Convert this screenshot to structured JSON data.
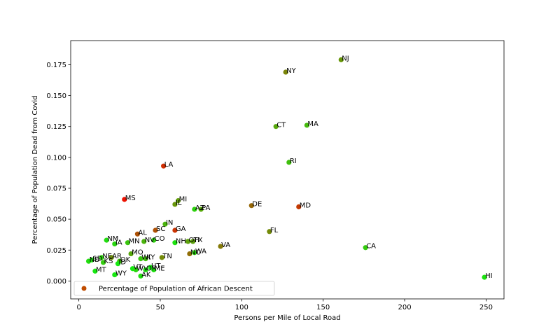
{
  "chart_data": {
    "type": "scatter",
    "xlabel": "Persons per Mile of Local Road",
    "ylabel": "Percentage of Population Dead from Covid",
    "xlim": [
      -5,
      261
    ],
    "ylim": [
      -0.0145,
      0.1945
    ],
    "xticks": [
      0,
      50,
      100,
      150,
      200,
      250
    ],
    "yticks": [
      0.0,
      0.025,
      0.05,
      0.075,
      0.1,
      0.125,
      0.15,
      0.175
    ],
    "ytick_labels": [
      "0.000",
      "0.025",
      "0.050",
      "0.075",
      "0.100",
      "0.125",
      "0.150",
      "0.175"
    ],
    "grid": false,
    "legend": {
      "placement": "lower-left",
      "label": "Percentage of Population of African Descent",
      "marker_color": "#c04c00"
    },
    "color_scale": {
      "low": "#11ee11",
      "high": "#ee1100"
    },
    "points": [
      {
        "label": "NJ",
        "x": 161,
        "y": 0.179,
        "african_pct": 0.15
      },
      {
        "label": "NY",
        "x": 127,
        "y": 0.169,
        "african_pct": 0.18
      },
      {
        "label": "CT",
        "x": 121,
        "y": 0.125,
        "african_pct": 0.12
      },
      {
        "label": "MA",
        "x": 140,
        "y": 0.126,
        "african_pct": 0.09
      },
      {
        "label": "RI",
        "x": 129,
        "y": 0.096,
        "african_pct": 0.08
      },
      {
        "label": "LA",
        "x": 52,
        "y": 0.093,
        "african_pct": 0.33
      },
      {
        "label": "MI",
        "x": 61,
        "y": 0.065,
        "african_pct": 0.14
      },
      {
        "label": "IL",
        "x": 59,
        "y": 0.062,
        "african_pct": 0.15
      },
      {
        "label": "MS",
        "x": 28,
        "y": 0.066,
        "african_pct": 0.38
      },
      {
        "label": "AZ",
        "x": 71,
        "y": 0.058,
        "african_pct": 0.05
      },
      {
        "label": "PA",
        "x": 75,
        "y": 0.058,
        "african_pct": 0.12
      },
      {
        "label": "DE",
        "x": 106,
        "y": 0.061,
        "african_pct": 0.23
      },
      {
        "label": "MD",
        "x": 135,
        "y": 0.06,
        "african_pct": 0.31
      },
      {
        "label": "IN",
        "x": 53,
        "y": 0.046,
        "african_pct": 0.1
      },
      {
        "label": "AL",
        "x": 36,
        "y": 0.038,
        "african_pct": 0.27
      },
      {
        "label": "SC",
        "x": 47,
        "y": 0.041,
        "african_pct": 0.27
      },
      {
        "label": "GA",
        "x": 59,
        "y": 0.041,
        "african_pct": 0.32
      },
      {
        "label": "FL",
        "x": 117,
        "y": 0.04,
        "african_pct": 0.17
      },
      {
        "label": "NM",
        "x": 17,
        "y": 0.033,
        "african_pct": 0.03
      },
      {
        "label": "IA",
        "x": 22,
        "y": 0.03,
        "african_pct": 0.04
      },
      {
        "label": "MN",
        "x": 30,
        "y": 0.031,
        "african_pct": 0.07
      },
      {
        "label": "NV",
        "x": 40,
        "y": 0.032,
        "african_pct": 0.1
      },
      {
        "label": "CO",
        "x": 46,
        "y": 0.033,
        "african_pct": 0.05
      },
      {
        "label": "NH",
        "x": 59,
        "y": 0.031,
        "african_pct": 0.02
      },
      {
        "label": "OH",
        "x": 67,
        "y": 0.032,
        "african_pct": 0.13
      },
      {
        "label": "TX",
        "x": 70,
        "y": 0.032,
        "african_pct": 0.13
      },
      {
        "label": "VA",
        "x": 87,
        "y": 0.028,
        "african_pct": 0.2
      },
      {
        "label": "CA",
        "x": 176,
        "y": 0.027,
        "african_pct": 0.06
      },
      {
        "label": "MO",
        "x": 32,
        "y": 0.022,
        "african_pct": 0.12
      },
      {
        "label": "NC",
        "x": 68,
        "y": 0.022,
        "african_pct": 0.22
      },
      {
        "label": "WA",
        "x": 71,
        "y": 0.023,
        "african_pct": 0.04
      },
      {
        "label": "TN",
        "x": 51,
        "y": 0.019,
        "african_pct": 0.17
      },
      {
        "label": "NE",
        "x": 14,
        "y": 0.019,
        "african_pct": 0.05
      },
      {
        "label": "AR",
        "x": 20,
        "y": 0.019,
        "african_pct": 0.16
      },
      {
        "label": "SD",
        "x": 8,
        "y": 0.017,
        "african_pct": 0.02
      },
      {
        "label": "ND",
        "x": 6,
        "y": 0.016,
        "african_pct": 0.03
      },
      {
        "label": "KS",
        "x": 15,
        "y": 0.015,
        "african_pct": 0.06
      },
      {
        "label": "OK",
        "x": 25,
        "y": 0.016,
        "african_pct": 0.08
      },
      {
        "label": "ID",
        "x": 24,
        "y": 0.014,
        "african_pct": 0.01
      },
      {
        "label": "WI",
        "x": 38,
        "y": 0.018,
        "african_pct": 0.07
      },
      {
        "label": "KY",
        "x": 41,
        "y": 0.018,
        "african_pct": 0.08
      },
      {
        "label": "MT",
        "x": 10,
        "y": 0.008,
        "african_pct": 0.01
      },
      {
        "label": "WY",
        "x": 22,
        "y": 0.005,
        "african_pct": 0.01
      },
      {
        "label": "VT",
        "x": 33,
        "y": 0.01,
        "african_pct": 0.01
      },
      {
        "label": "WV",
        "x": 35,
        "y": 0.009,
        "african_pct": 0.04
      },
      {
        "label": "OR",
        "x": 41,
        "y": 0.009,
        "african_pct": 0.02
      },
      {
        "label": "UT",
        "x": 44,
        "y": 0.011,
        "african_pct": 0.01
      },
      {
        "label": "ME",
        "x": 46,
        "y": 0.009,
        "african_pct": 0.02
      },
      {
        "label": "AK",
        "x": 38,
        "y": 0.004,
        "african_pct": 0.03
      },
      {
        "label": "HI",
        "x": 249,
        "y": 0.003,
        "african_pct": 0.02
      }
    ]
  }
}
